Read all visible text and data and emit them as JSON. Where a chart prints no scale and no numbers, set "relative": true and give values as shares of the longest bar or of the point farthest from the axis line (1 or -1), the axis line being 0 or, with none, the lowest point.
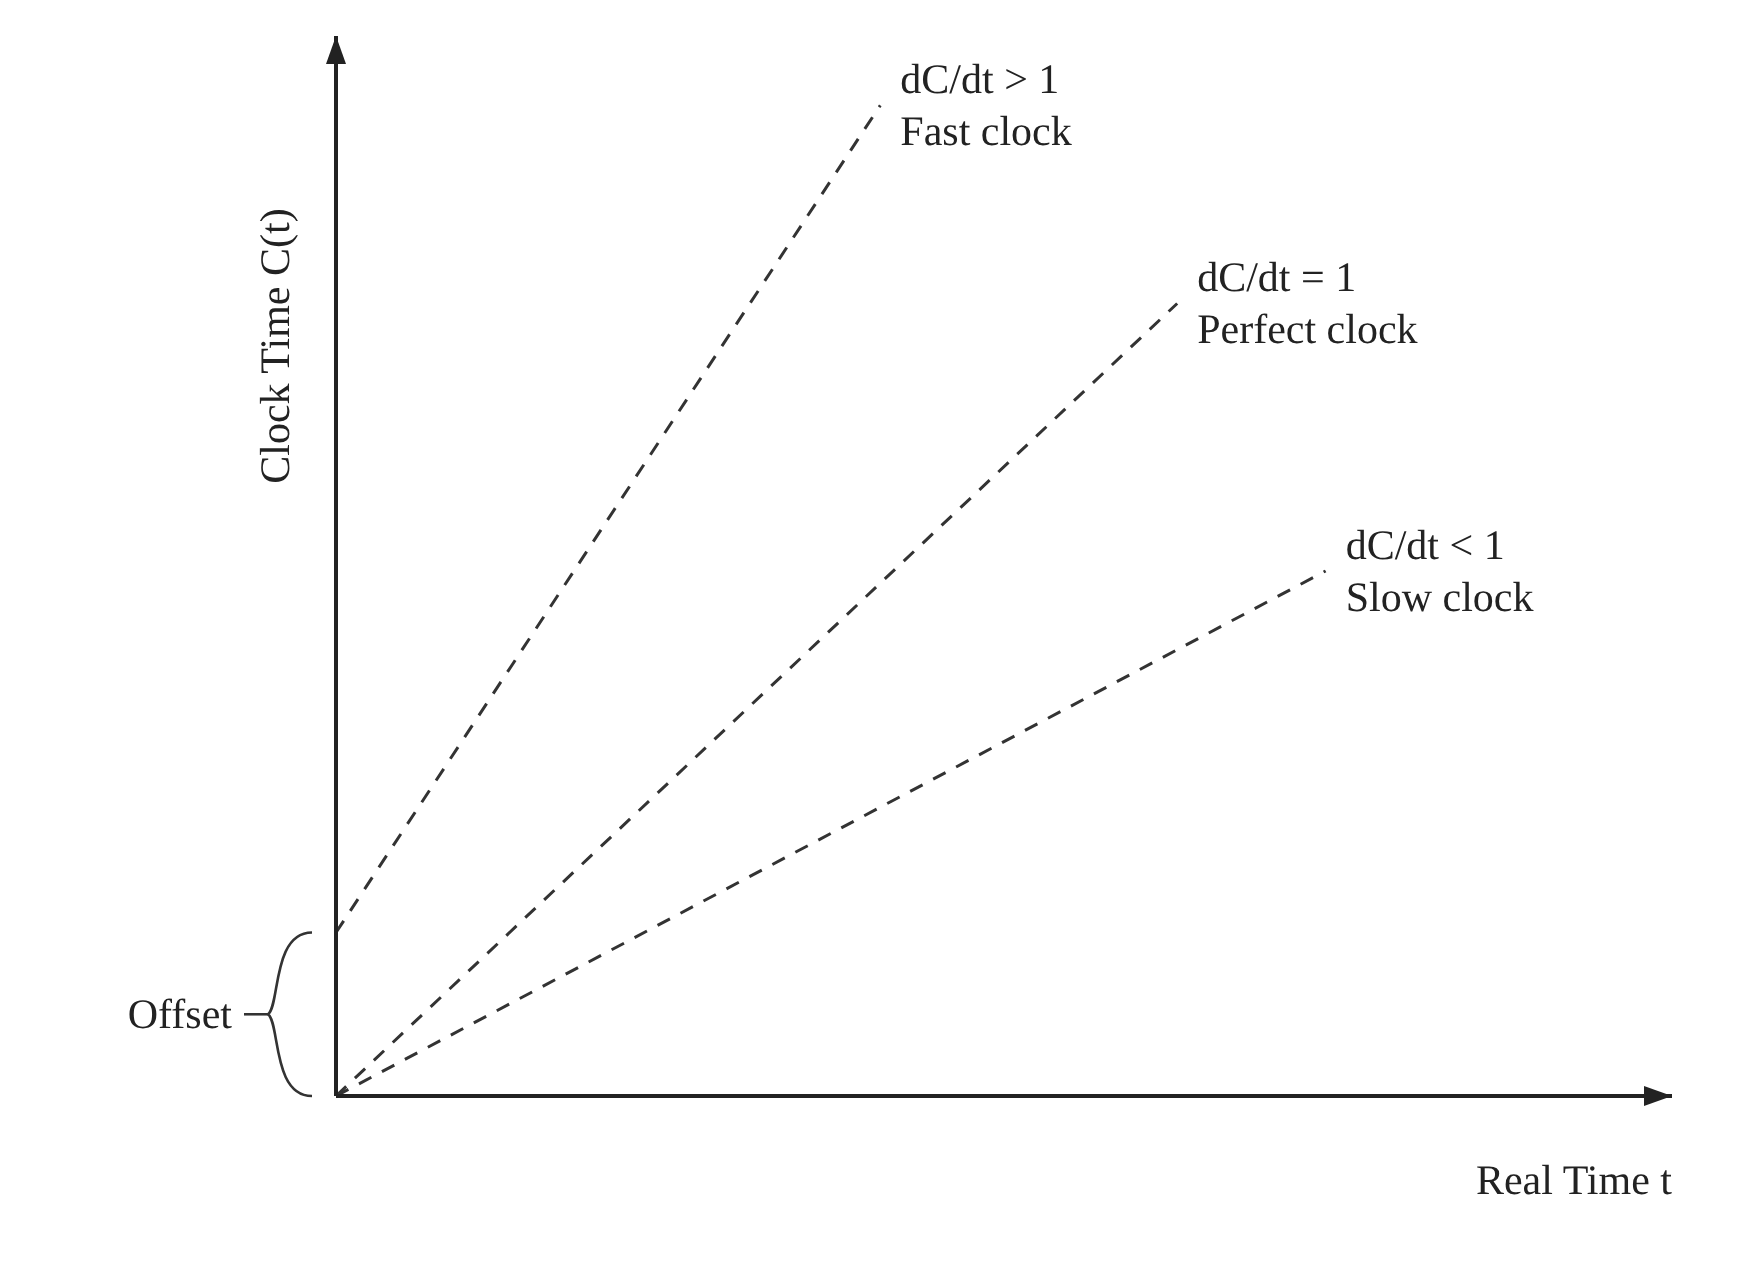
{
  "chart_data": {
    "type": "line",
    "relative": true,
    "xlabel": "Real Time t",
    "ylabel": "Clock Time C(t)",
    "legend": false,
    "grid": false,
    "marker": "none",
    "line_style": "dashed",
    "annotations": [
      "Offset"
    ],
    "categories": [
      null,
      null,
      null,
      null,
      null,
      null,
      null,
      null,
      null,
      null,
      null,
      null,
      null,
      null,
      null,
      null,
      null,
      null,
      null,
      null,
      null,
      null,
      null,
      null,
      null,
      null,
      null,
      null
    ],
    "series": [
      {
        "name": "dC/dt > 1\nFast clock",
        "color": "#333333",
        "values": [
          0.165,
          null,
          null,
          null,
          null,
          null,
          null,
          null,
          null,
          null,
          null,
          1,
          null,
          null,
          null,
          null,
          null,
          null,
          null,
          null,
          null,
          null,
          null,
          null,
          null,
          null,
          null,
          null
        ]
      },
      {
        "name": "dC/dt = 1\nPerfect clock",
        "color": "#333333",
        "values": [
          0,
          null,
          null,
          null,
          null,
          null,
          null,
          null,
          null,
          null,
          null,
          null,
          null,
          null,
          null,
          null,
          null,
          0.8,
          null,
          null,
          null,
          null,
          null,
          null,
          null,
          null,
          null,
          null
        ]
      },
      {
        "name": "dC/dt < 1\nSlow clock",
        "color": "#333333",
        "values": [
          0,
          null,
          null,
          null,
          null,
          null,
          null,
          null,
          null,
          null,
          null,
          null,
          null,
          null,
          null,
          null,
          null,
          null,
          null,
          null,
          0.53,
          null,
          null,
          null,
          null,
          null,
          null,
          null
        ]
      }
    ]
  }
}
